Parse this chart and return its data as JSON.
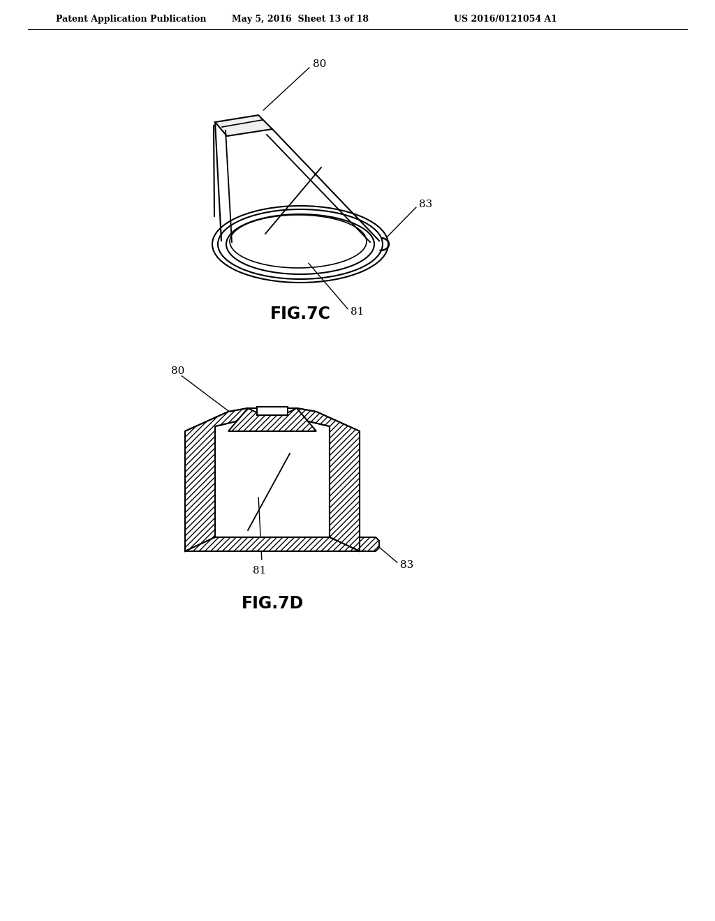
{
  "background_color": "#ffffff",
  "header_left": "Patent Application Publication",
  "header_mid": "May 5, 2016  Sheet 13 of 18",
  "header_right": "US 2016/0121054 A1",
  "fig7c_label": "FIG.7C",
  "fig7d_label": "FIG.7D",
  "line_color": "#000000",
  "line_width": 1.5
}
